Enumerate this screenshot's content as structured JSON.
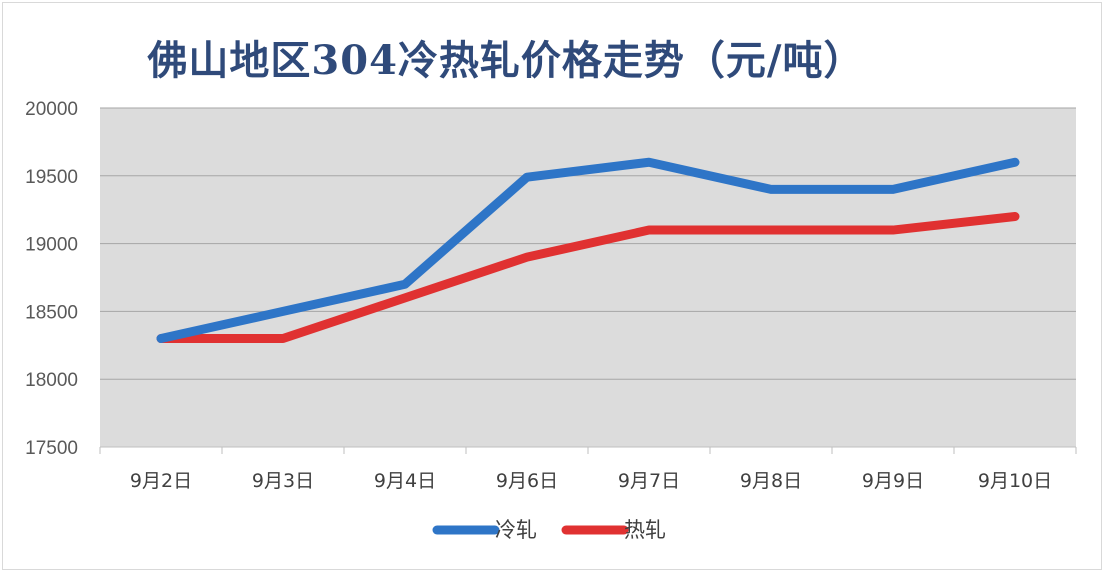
{
  "chart_data": {
    "type": "line",
    "title": "佛山地区304冷热轧价格走势（元/吨）",
    "categories": [
      "9月2日",
      "9月3日",
      "9月4日",
      "9月6日",
      "9月7日",
      "9月8日",
      "9月9日",
      "9月10日"
    ],
    "series": [
      {
        "name": "冷轧",
        "color": "#2e75c7",
        "values": [
          18300,
          18500,
          18700,
          19490,
          19600,
          19400,
          19400,
          19600
        ]
      },
      {
        "name": "热轧",
        "color": "#e03131",
        "values": [
          18300,
          18300,
          18600,
          18900,
          19100,
          19100,
          19100,
          19200
        ]
      }
    ],
    "ylim": [
      17500,
      20000
    ],
    "yticks": [
      17500,
      18000,
      18500,
      19000,
      19500,
      20000
    ],
    "grid": true,
    "plot_background": "#dcdcdc",
    "legend_position": "bottom",
    "xlabel": "",
    "ylabel": ""
  }
}
